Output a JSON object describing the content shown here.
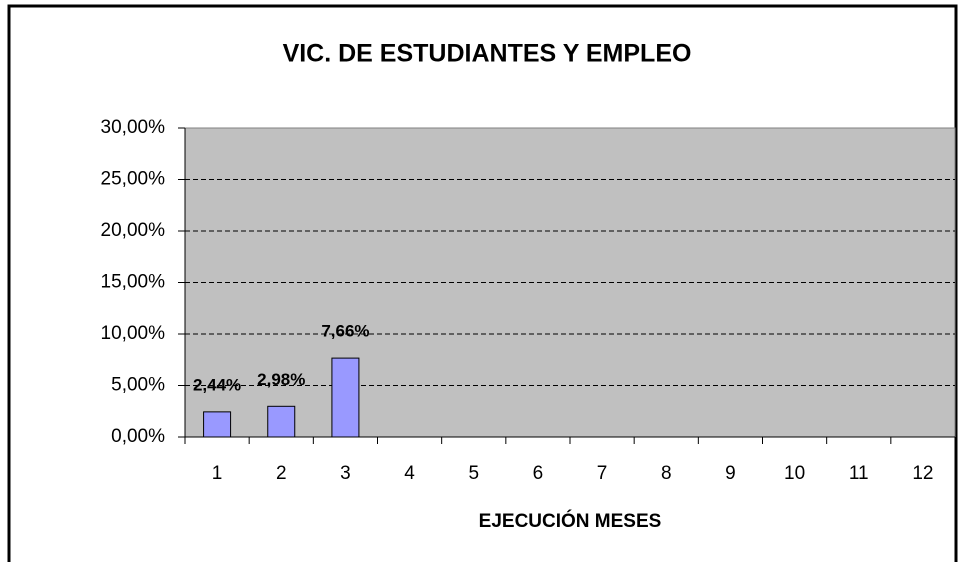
{
  "chart_data": {
    "type": "bar",
    "title": "VIC. DE ESTUDIANTES Y EMPLEO",
    "x_label": "EJECUCIÓN MESES",
    "categories": [
      "1",
      "2",
      "3",
      "4",
      "5",
      "6",
      "7",
      "8",
      "9",
      "10",
      "11",
      "12"
    ],
    "values": [
      2.44,
      2.98,
      7.66,
      null,
      null,
      null,
      null,
      null,
      null,
      null,
      null,
      null
    ],
    "value_labels": [
      "2,44%",
      "2,98%",
      "7,66%",
      null,
      null,
      null,
      null,
      null,
      null,
      null,
      null,
      null
    ],
    "color": "#9999ff",
    "ylim": [
      0,
      30
    ],
    "yticks": [
      {
        "value": 0,
        "label": "0,00%"
      },
      {
        "value": 5,
        "label": "5,00%"
      },
      {
        "value": 10,
        "label": "10,00%"
      },
      {
        "value": 15,
        "label": "15,00%"
      },
      {
        "value": 20,
        "label": "20,00%"
      },
      {
        "value": 25,
        "label": "25,00%"
      },
      {
        "value": 30,
        "label": "30,00%"
      }
    ],
    "grid": true
  }
}
